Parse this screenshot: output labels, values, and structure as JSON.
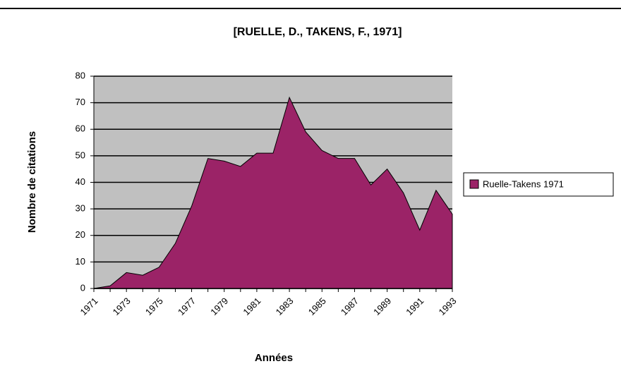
{
  "chart_data": {
    "type": "area",
    "title": "[RUELLE, D., TAKENS, F., 1971]",
    "x_label": "Années",
    "y_label": "Nombre de citations",
    "categories": [
      "1971",
      null,
      "1973",
      null,
      "1975",
      null,
      "1977",
      null,
      "1979",
      null,
      "1981",
      null,
      "1983",
      null,
      "1985",
      null,
      "1987",
      null,
      "1989",
      null,
      "1991",
      null,
      "1993"
    ],
    "series": [
      {
        "name": "Ruelle-Takens 1971",
        "color": "#9b2367",
        "values": [
          0,
          1,
          6,
          5,
          8,
          17,
          31,
          49,
          48,
          46,
          51,
          51,
          72,
          59,
          52,
          49,
          49,
          39,
          45,
          36,
          22,
          37,
          28
        ]
      }
    ],
    "ylim": [
      0,
      80
    ],
    "yticks": [
      0,
      10,
      20,
      30,
      40,
      50,
      60,
      70,
      80
    ],
    "grid": true,
    "legend": "right",
    "plot_background": "#c0c0c0"
  }
}
